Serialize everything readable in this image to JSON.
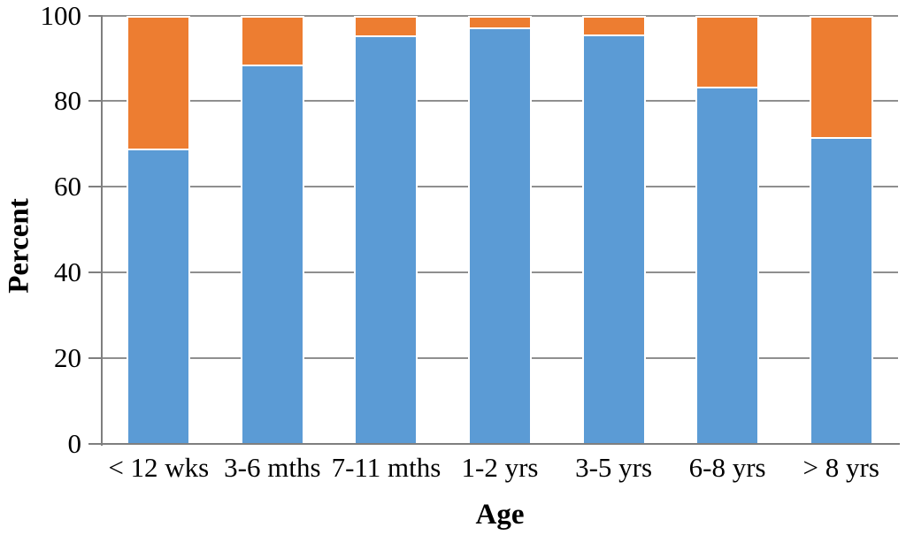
{
  "chart_data": {
    "type": "bar",
    "stacked": true,
    "title": "",
    "xlabel": "Age",
    "ylabel": "Percent",
    "categories": [
      "< 12 wks",
      "3-6 mths",
      "7-11 mths",
      "1-2 yrs",
      "3-5 yrs",
      "6-8 yrs",
      "> 8 yrs"
    ],
    "series": [
      {
        "name": "blue-segment",
        "color": "#5B9BD5",
        "values": [
          69,
          88.5,
          95.4,
          97.3,
          95.5,
          83.3,
          71.5
        ]
      },
      {
        "name": "orange-segment",
        "color": "#ED7D31",
        "values": [
          31,
          11.5,
          4.6,
          2.7,
          4.5,
          16.7,
          28.5
        ]
      }
    ],
    "ylim": [
      0,
      100
    ],
    "yticks": [
      0,
      20,
      40,
      60,
      80,
      100
    ],
    "grid": true,
    "legend": "none"
  },
  "colors": {
    "gridline": "#8f8f8f",
    "axis": "#7f7f7f",
    "bar_border": "#ffffff",
    "background": "#ffffff"
  }
}
